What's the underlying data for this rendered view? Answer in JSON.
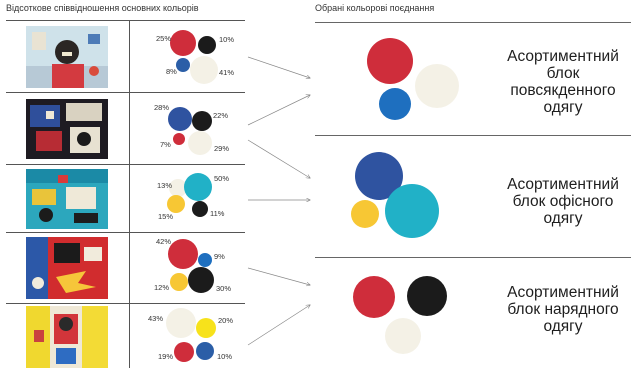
{
  "titles": {
    "left": "Відсоткове співвідношення основних кольорів",
    "right": "Обрані кольорові поєднання"
  },
  "colors": {
    "red": "#cf2d3b",
    "black": "#1b1b1b",
    "blue": "#2b5ea7",
    "navy": "#2f53a0",
    "cream": "#f4f1e6",
    "teal": "#21b1c7",
    "yellow": "#f7c734",
    "brightyellow": "#f7e21b",
    "lightblue": "#1e6fbf"
  },
  "rows": [
    {
      "name": "painting-1",
      "percents": {
        "red": "25%",
        "black": "10%",
        "blue": "8%",
        "cream": "41%"
      }
    },
    {
      "name": "painting-2",
      "percents": {
        "navy": "28%",
        "black": "22%",
        "red": "7%",
        "cream": "29%"
      }
    },
    {
      "name": "painting-3",
      "percents": {
        "cream": "13%",
        "teal": "50%",
        "yellow": "15%",
        "black": "11%"
      }
    },
    {
      "name": "painting-4",
      "percents": {
        "red": "42%",
        "blue": "9%",
        "yellow": "12%",
        "black": "30%"
      }
    },
    {
      "name": "painting-5",
      "percents": {
        "cream": "43%",
        "yellow": "20%",
        "red": "19%",
        "blue": "10%"
      }
    }
  ],
  "blocks": [
    {
      "label": "Асортиментний блок повсякденного одягу"
    },
    {
      "label": "Асортиментний блок офісного одягу"
    },
    {
      "label": "Асортиментний блок нарядного одягу"
    }
  ]
}
